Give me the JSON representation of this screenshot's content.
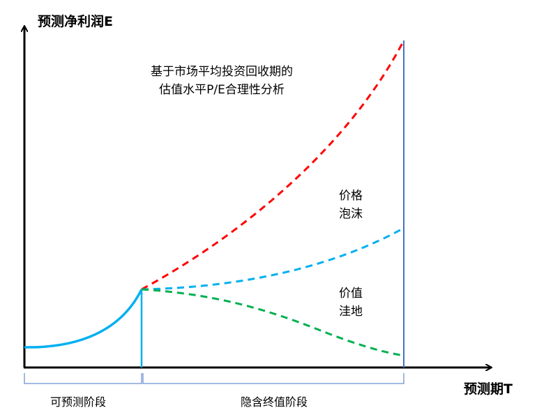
{
  "axes": {
    "y_label": "预测净利润E",
    "x_label": "预测期T"
  },
  "annotation": {
    "line1": "基于市场平均投资回收期的",
    "line2": "估值水平P/E合理性分析"
  },
  "regions": {
    "bubble": [
      "价格",
      "泡沫"
    ],
    "trough": [
      "价值",
      "洼地"
    ]
  },
  "phases": {
    "forecastable": "可预测阶段",
    "terminal": "隐含终值阶段"
  },
  "colors": {
    "forecast_curve": "#00B0F0",
    "bubble_curve": "#FF0000",
    "fair_curve": "#00B0F0",
    "trough_curve": "#00B050",
    "boundary_line": "#4472C4",
    "brace": "#4472C4"
  }
}
